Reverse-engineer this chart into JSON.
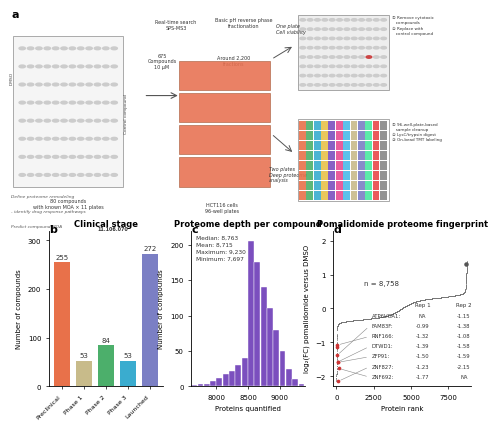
{
  "panel_b": {
    "title": "Clinical stage",
    "categories": [
      "Preclinical",
      "Phase 1",
      "Phase 2",
      "Phase 3",
      "Launched"
    ],
    "values": [
      255,
      53,
      84,
      53,
      272
    ],
    "colors": [
      "#E8714A",
      "#C8BB8A",
      "#4CAF6B",
      "#3AACCF",
      "#7B7FC4"
    ],
    "ylabel": "Number of compounds",
    "ylim": [
      0,
      320
    ],
    "yticks": [
      0,
      100,
      200,
      300
    ]
  },
  "panel_c": {
    "title": "Proteome depth per compound",
    "xlabel": "Proteins quantified",
    "ylabel": "Number of compounds",
    "annotation": "Median: 8,763\nMean: 8,715\nMaximum: 9,230\nMinimum: 7,697",
    "bar_color": "#7B4FBE",
    "xlim": [
      7600,
      9400
    ],
    "ylim": [
      0,
      220
    ],
    "yticks": [
      0,
      50,
      100,
      150,
      200
    ],
    "xticks": [
      8000,
      8500,
      9000
    ],
    "hist_edges": [
      7600,
      7700,
      7800,
      7900,
      8000,
      8100,
      8200,
      8300,
      8400,
      8500,
      8600,
      8700,
      8800,
      8900,
      9000,
      9100,
      9200,
      9300,
      9400
    ],
    "hist_counts": [
      2,
      4,
      4,
      8,
      12,
      18,
      22,
      30,
      40,
      205,
      175,
      140,
      110,
      80,
      50,
      25,
      10,
      4
    ]
  },
  "panel_d": {
    "title": "Pomalidomide proteome fingerprint",
    "xlabel": "Protein rank",
    "ylabel": "log₂(FC) pomalidomide versus DMSO",
    "n_label": "n = 8,758",
    "n_proteins": 8758,
    "highlight_color": "#CC3333",
    "main_color": "#888888",
    "xlim": [
      -200,
      9000
    ],
    "ylim": [
      -2.3,
      2.3
    ],
    "xticks": [
      0,
      2500,
      5000,
      7500
    ],
    "yticks": [
      -2,
      -1,
      0,
      1,
      2
    ],
    "table_genes": [
      "ATP6VOA1:",
      "FAM83F:",
      "RNF166:",
      "DTWD1:",
      "ZFP91:",
      "ZNF827:",
      "ZNF692:"
    ],
    "table_rep1": [
      "NA",
      "-0.99",
      "-1.32",
      "-1.39",
      "-1.50",
      "-1.23",
      "-1.77"
    ],
    "table_rep2": [
      "-1.15",
      "-1.38",
      "-1.08",
      "-1.58",
      "-1.59",
      "-2.15",
      "NA"
    ]
  }
}
